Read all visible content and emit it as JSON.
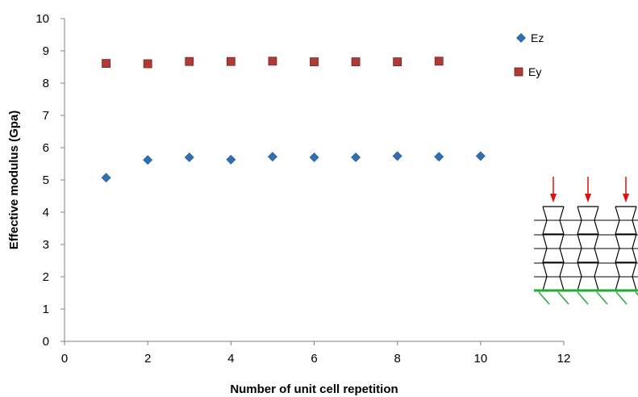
{
  "chart_data": {
    "type": "scatter",
    "title": "",
    "xlabel": "Number of unit cell repetition",
    "ylabel": "Effective modulus (Gpa)",
    "xlim": [
      0,
      12
    ],
    "ylim": [
      0,
      10
    ],
    "xticks": [
      0,
      2,
      4,
      6,
      8,
      10,
      12
    ],
    "yticks": [
      0,
      1,
      2,
      3,
      4,
      5,
      6,
      7,
      8,
      9,
      10
    ],
    "grid": false,
    "legend_position": "top-right",
    "series": [
      {
        "name": "Ez",
        "marker": "diamond",
        "color": "#2f6fb3",
        "x": [
          1,
          2,
          3,
          4,
          5,
          6,
          7,
          8,
          9,
          10
        ],
        "y": [
          5.07,
          5.62,
          5.7,
          5.63,
          5.72,
          5.7,
          5.7,
          5.74,
          5.72,
          5.74
        ]
      },
      {
        "name": "Ey",
        "marker": "square",
        "color": "#b03a36",
        "x": [
          1,
          2,
          3,
          4,
          5,
          6,
          7,
          8,
          9
        ],
        "y": [
          8.61,
          8.6,
          8.67,
          8.67,
          8.68,
          8.66,
          8.66,
          8.66,
          8.68
        ]
      }
    ]
  },
  "inset": {
    "arrow_color": "#e01010",
    "support_color": "#22aa33",
    "lattice_color": "#000000"
  }
}
